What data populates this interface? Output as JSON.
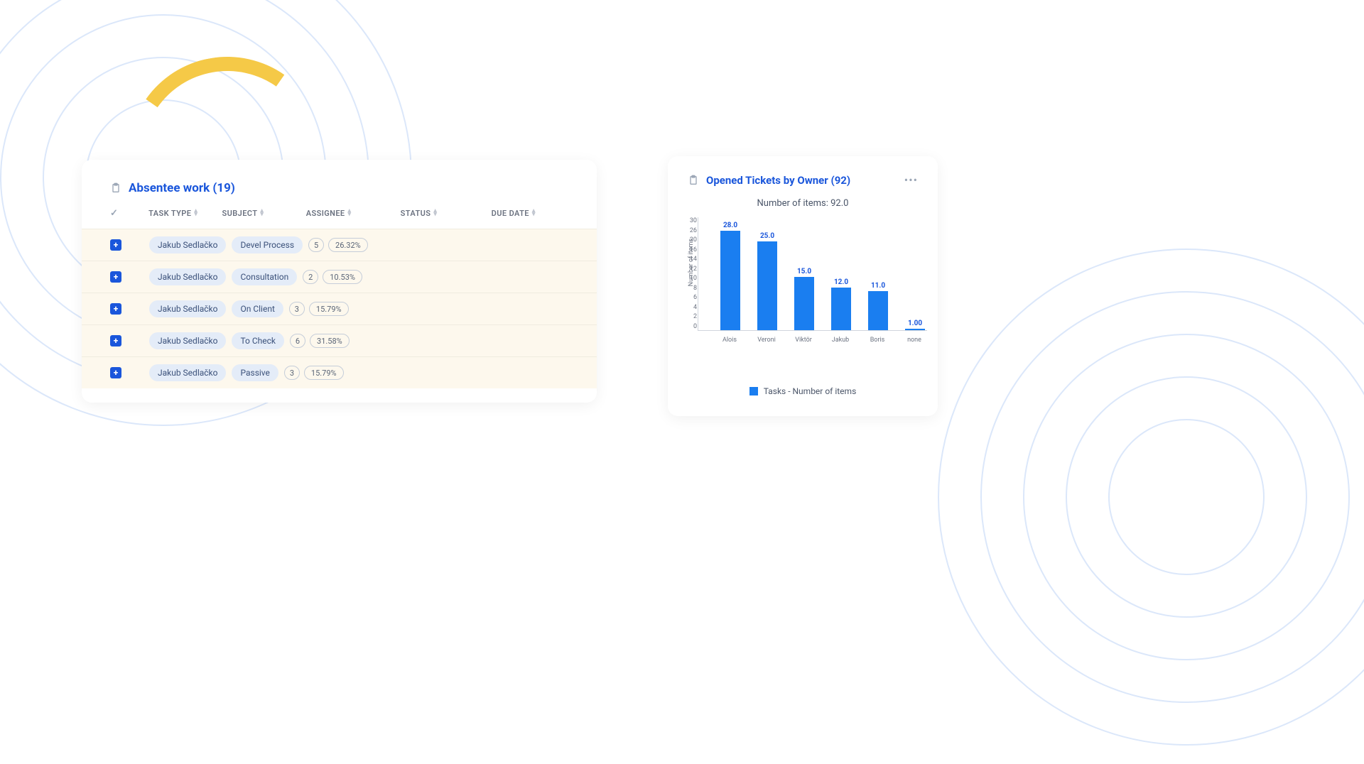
{
  "leftCard": {
    "title": "Absentee work (19)",
    "columns": [
      "TASK TYPE",
      "SUBJECT",
      "ASSIGNEE",
      "STATUS",
      "DUE DATE"
    ],
    "rows": [
      {
        "assignee": "Jakub Sedlačko",
        "subject": "Devel Process",
        "count": "5",
        "pct": "26.32%"
      },
      {
        "assignee": "Jakub Sedlačko",
        "subject": "Consultation",
        "count": "2",
        "pct": "10.53%"
      },
      {
        "assignee": "Jakub Sedlačko",
        "subject": "On Client",
        "count": "3",
        "pct": "15.79%"
      },
      {
        "assignee": "Jakub Sedlačko",
        "subject": "To Check",
        "count": "6",
        "pct": "31.58%"
      },
      {
        "assignee": "Jakub Sedlačko",
        "subject": "Passive",
        "count": "3",
        "pct": "15.79%"
      }
    ]
  },
  "rightCard": {
    "title": "Opened Tickets by Owner (92)",
    "subtitle": "Number of items: 92.0",
    "yAxisLabel": "Number of items",
    "yTicks": [
      "0",
      "2",
      "4",
      "6",
      "8",
      "10",
      "12",
      "14",
      "16",
      "20",
      "26",
      "30"
    ],
    "yMax": 30,
    "bars": [
      {
        "label": "Alois",
        "value": 28,
        "textValue": "28.0"
      },
      {
        "label": "Veroni",
        "value": 25,
        "textValue": "25.0"
      },
      {
        "label": "Viktör",
        "value": 15,
        "textValue": "15.0"
      },
      {
        "label": "Jakub",
        "value": 12,
        "textValue": "12.0"
      },
      {
        "label": "Boris",
        "value": 11,
        "textValue": "11.0"
      },
      {
        "label": "none",
        "value": 1,
        "textValue": "1.00"
      }
    ],
    "legendText": "Tasks - Number of items",
    "barColor": "#1a7ef0",
    "accentColor": "#1a56db"
  },
  "colors": {
    "circleStroke": "#dbe7fa",
    "yellowArc": "#f5c947",
    "rowBg": "#fdf8ed",
    "pillBg": "#e4ecf8"
  }
}
